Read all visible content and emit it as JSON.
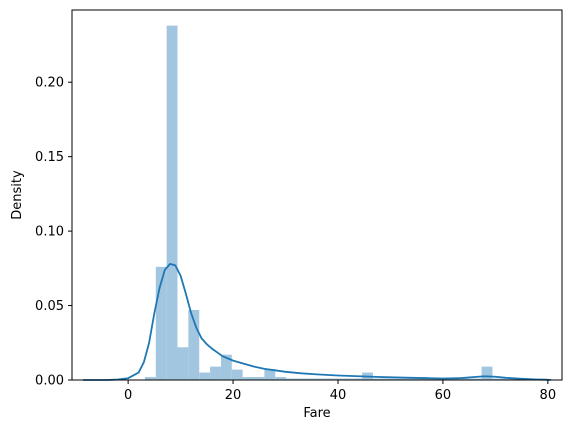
{
  "chart_data": {
    "type": "bar",
    "subtype": "histogram-with-kde",
    "xlabel": "Fare",
    "ylabel": "Density",
    "xlim": [
      -10.7,
      82.7
    ],
    "ylim": [
      0,
      0.2485
    ],
    "x_ticks": [
      0,
      20,
      40,
      60,
      80
    ],
    "x_tick_labels": [
      "0",
      "20",
      "40",
      "60",
      "80"
    ],
    "y_ticks": [
      0.0,
      0.05,
      0.1,
      0.15,
      0.2
    ],
    "y_tick_labels": [
      "0.00",
      "0.05",
      "0.10",
      "0.15",
      "0.20"
    ],
    "histogram": {
      "bin_start": 3.2,
      "bin_width": 2.07,
      "values": [
        0.002,
        0.076,
        0.238,
        0.022,
        0.047,
        0.005,
        0.009,
        0.017,
        0.007,
        0.002,
        0.002,
        0.007,
        0.002,
        0.001,
        0.001,
        0.001,
        0.001,
        0.001,
        0.001,
        0.001,
        0.005,
        0.001,
        0.001,
        0.001,
        0.001,
        0.002,
        0.001,
        0.001,
        0.001,
        0.001,
        0.001,
        0.009,
        0.001,
        0.001,
        0.001,
        0.001,
        0.001
      ],
      "color": "#a3c6e0"
    },
    "kde": {
      "x": [
        -8.5,
        -6,
        -4,
        -2,
        0,
        2,
        3,
        4,
        5,
        6,
        7,
        8,
        9,
        10,
        11,
        12,
        13,
        14,
        15,
        16,
        18,
        20,
        22,
        24,
        26,
        28,
        30,
        33,
        36,
        40,
        44,
        48,
        52,
        56,
        60,
        63,
        66,
        68,
        70,
        72,
        75,
        78,
        80.5
      ],
      "y": [
        0.0,
        0.0,
        0.0,
        0.0003,
        0.0012,
        0.005,
        0.012,
        0.025,
        0.045,
        0.062,
        0.074,
        0.078,
        0.077,
        0.07,
        0.058,
        0.045,
        0.035,
        0.028,
        0.024,
        0.021,
        0.016,
        0.013,
        0.011,
        0.009,
        0.0075,
        0.0065,
        0.0055,
        0.0045,
        0.0038,
        0.003,
        0.0025,
        0.002,
        0.0017,
        0.0013,
        0.001,
        0.0012,
        0.002,
        0.0025,
        0.0022,
        0.0015,
        0.0008,
        0.0003,
        0.0001
      ],
      "color": "#1f77b4"
    },
    "grid": false,
    "legend": false
  }
}
